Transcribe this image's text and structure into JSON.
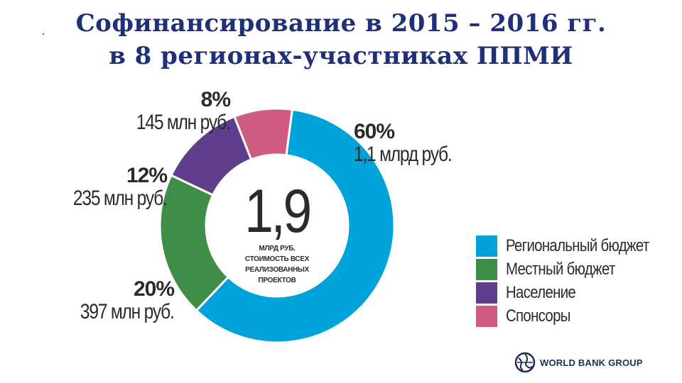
{
  "title": {
    "line1": "Софинансирование в 2015 – 2016 гг.",
    "line2": "в 8 регионах-участниках ППМИ"
  },
  "chart_data": {
    "type": "pie",
    "donut": true,
    "categories": [
      "Региональный бюджет",
      "Местный бюджет",
      "Население",
      "Спонсоры"
    ],
    "values": [
      60,
      20,
      12,
      8
    ],
    "value_unit": "%",
    "amounts": [
      "1,1 млрд руб.",
      "397 млн руб.",
      "235 млн руб.",
      "145 млн руб."
    ],
    "percent_labels": [
      "60%",
      "20%",
      "12%",
      "8%"
    ],
    "colors": [
      "#00a3d9",
      "#3f8d46",
      "#5f3f8b",
      "#cf5a84"
    ],
    "center_value": "1,9",
    "center_caption": [
      "МЛРД РУБ.",
      "СТОИМОСТЬ ВСЕХ",
      "РЕАЛИЗОВАННЫХ",
      "ПРОЕКТОВ"
    ],
    "legend_position": "right"
  },
  "logo": {
    "text": "WORLD BANK GROUP",
    "icon": "globe-icon"
  }
}
